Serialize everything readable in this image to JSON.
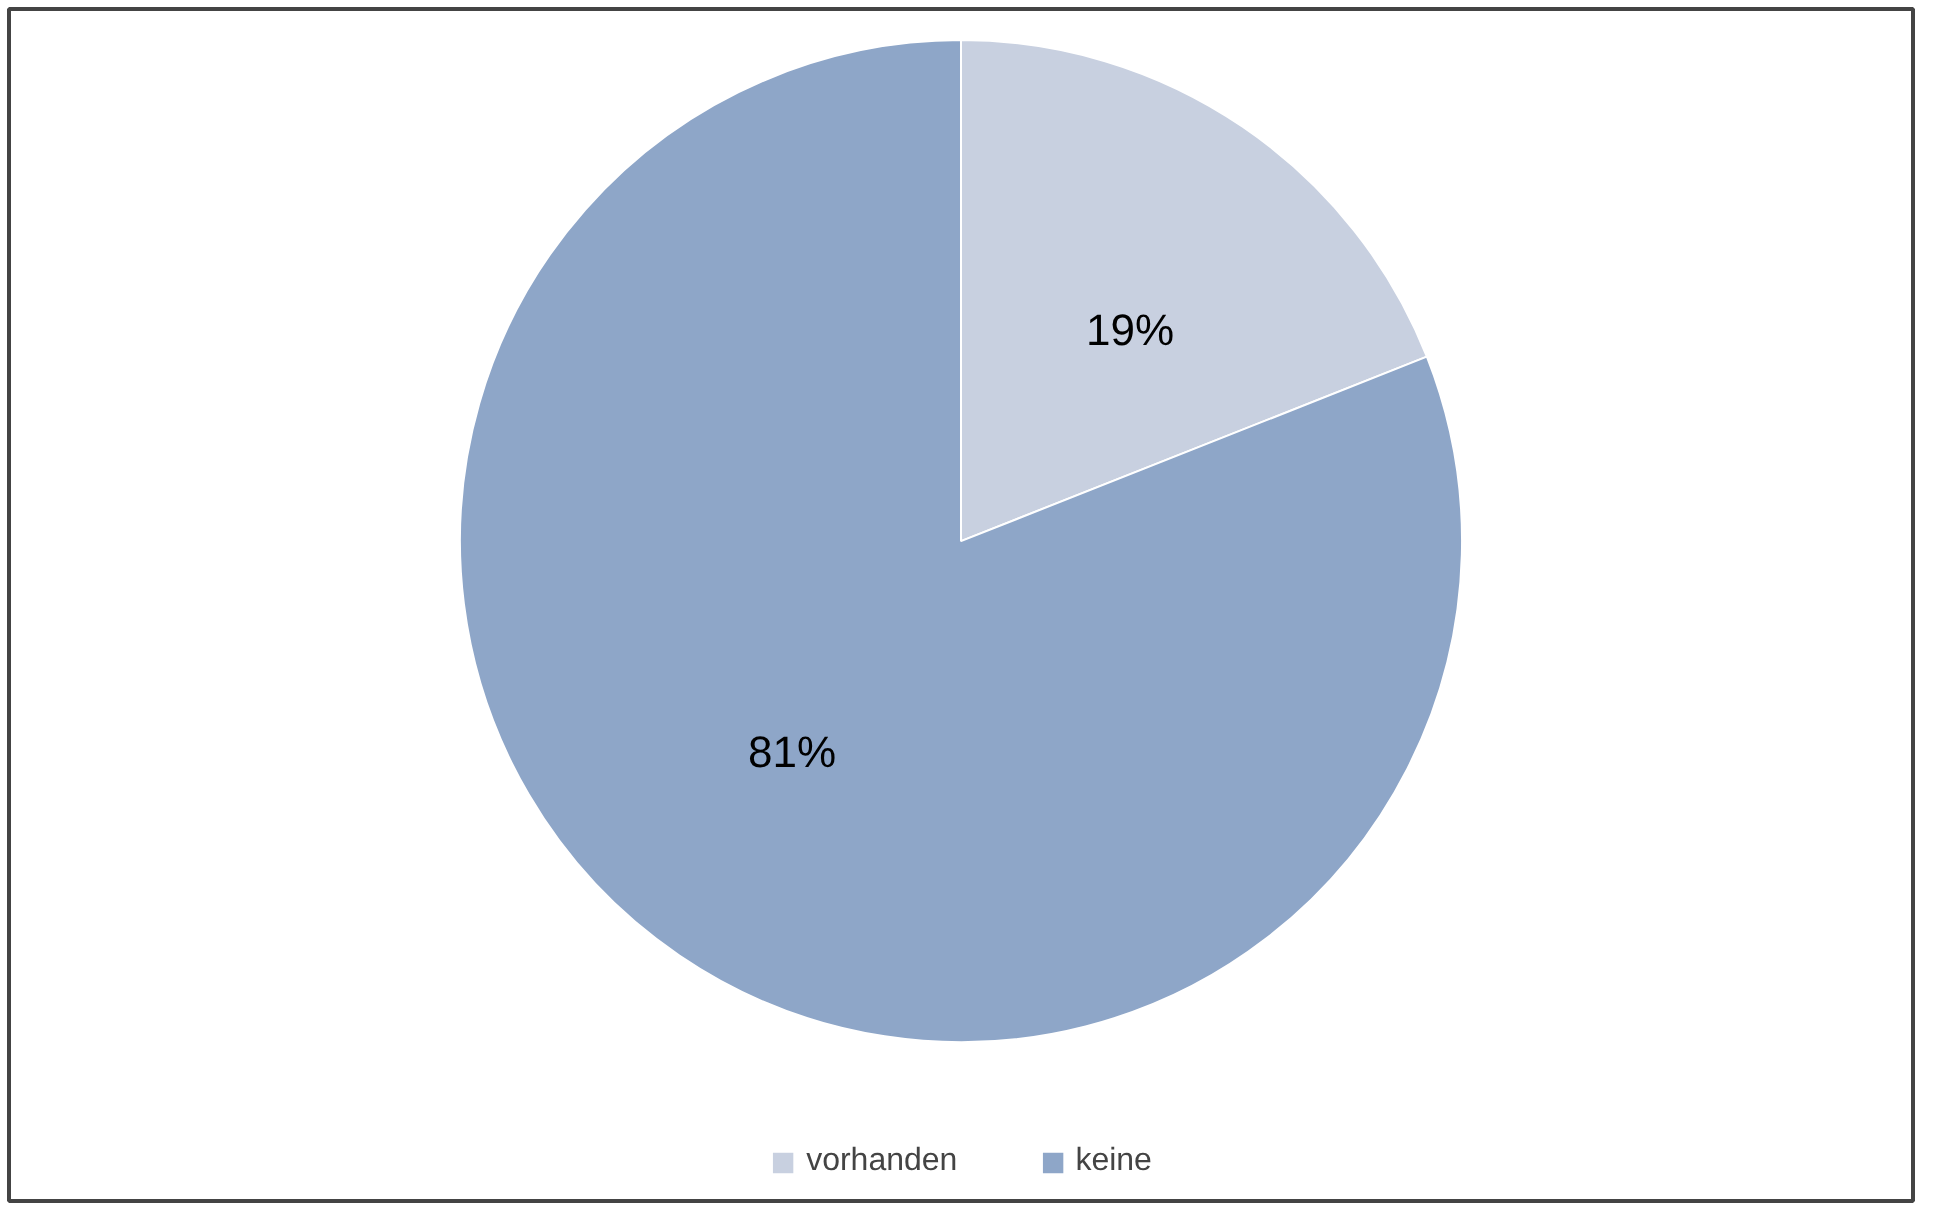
{
  "chart_data": {
    "type": "pie",
    "categories": [
      "vorhanden",
      "keine"
    ],
    "values": [
      19,
      81
    ],
    "colors": [
      "#c8d0e0",
      "#8ea6c8"
    ],
    "value_labels": [
      "19%",
      "81%"
    ],
    "legend": "bottom"
  }
}
